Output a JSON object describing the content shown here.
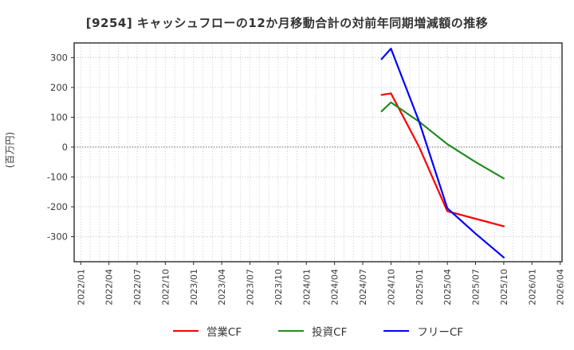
{
  "title": "[9254]  キャッシュフローの12か月移動合計の対前年同期増減額の推移",
  "y_axis_label": "(百万円)",
  "axes": {
    "y_ticks": [
      300,
      200,
      100,
      0,
      -100,
      -200,
      -300
    ],
    "x_ticks": [
      "2022/01",
      "2022/04",
      "2022/07",
      "2022/10",
      "2023/01",
      "2023/04",
      "2023/07",
      "2023/10",
      "2024/01",
      "2024/04",
      "2024/07",
      "2024/10",
      "2025/01",
      "2025/04",
      "2025/07",
      "2025/10",
      "2026/01",
      "2026/04"
    ],
    "ylim": [
      -384,
      349
    ],
    "xlim_months": [
      -0.7,
      51.2
    ],
    "grid": "on",
    "legend_position": "bottom-center"
  },
  "chart_data": {
    "type": "line",
    "title": "[9254]  キャッシュフローの12か月移動合計の対前年同期増減額の推移",
    "xlabel": "",
    "ylabel": "(百万円)",
    "x": [
      "2024/09",
      "2024/10",
      "2025/01",
      "2025/04",
      "2025/07",
      "2025/10"
    ],
    "series": [
      {
        "name": "営業CF",
        "key": "operating-cf",
        "color": "#ff0000",
        "values": [
          175,
          180,
          0,
          -215,
          -240,
          -265
        ]
      },
      {
        "name": "投資CF",
        "key": "investing-cf",
        "color": "#228b22",
        "values": [
          120,
          150,
          85,
          10,
          -50,
          -105
        ]
      },
      {
        "name": "フリーCF",
        "key": "free-cf",
        "color": "#0000ff",
        "values": [
          295,
          330,
          85,
          -205,
          -290,
          -370
        ]
      }
    ],
    "x_axis_span": [
      "2022/01",
      "2026/04"
    ],
    "x_tick_interval": "3 months",
    "ylim": [
      -384,
      349
    ]
  },
  "colors": {
    "grid": "#c4c4c4",
    "zero_line": "#757575",
    "frame": "#2a2a2a",
    "tick_text": "#3c3c3c",
    "title_text": "#333333"
  }
}
